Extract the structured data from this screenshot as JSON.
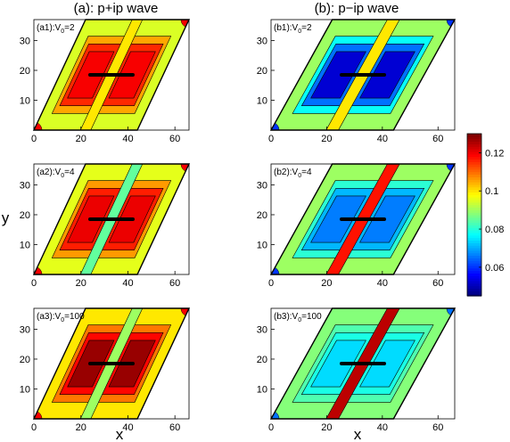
{
  "figure": {
    "col_a_title": "(a): p+ip wave",
    "col_b_title": "(b): p−ip wave",
    "xlabel": "x",
    "ylabel": "y"
  },
  "chart_data": {
    "type": "heatmap",
    "domain": "rhombus (parallelogram) lattice, x from 0 to 66, y from 0 to 37",
    "x_axis": {
      "ticks": [
        0,
        20,
        40,
        60
      ],
      "range": [
        0,
        66
      ]
    },
    "y_axis": {
      "ticks": [
        10,
        20,
        30
      ],
      "range": [
        0,
        37
      ]
    },
    "colorbar": {
      "ticks": [
        "0.12",
        "0.1",
        "0.08",
        "0.06"
      ],
      "tick_values": [
        0.12,
        0.1,
        0.08,
        0.06
      ],
      "range": [
        0.045,
        0.13
      ],
      "colormap": "jet"
    },
    "panels": [
      {
        "id": "a1",
        "label_prefix": "(a1):V",
        "label_sub": "0",
        "label_suffix": "=2",
        "pattern": "p+ip",
        "V0": 2,
        "background": 0.095,
        "lobe": 0.116,
        "core": 0.12,
        "center": 0.1,
        "corner": 0.12
      },
      {
        "id": "a2",
        "label_prefix": "(a2):V",
        "label_sub": "0",
        "label_suffix": "=4",
        "pattern": "p+ip",
        "V0": 4,
        "background": 0.096,
        "lobe": 0.117,
        "core": 0.121,
        "center": 0.085,
        "corner": 0.12
      },
      {
        "id": "a3",
        "label_prefix": "(a3):V",
        "label_sub": "0",
        "label_suffix": "=100",
        "pattern": "p+ip",
        "V0": 100,
        "background": 0.1,
        "lobe": 0.119,
        "core": 0.128,
        "center": 0.09,
        "corner": 0.12
      },
      {
        "id": "b1",
        "label_prefix": "(b1):V",
        "label_sub": "0",
        "label_suffix": "=2",
        "pattern": "p-ip",
        "V0": 2,
        "background": 0.09,
        "lobe": 0.065,
        "core": 0.052,
        "center": 0.1,
        "corner": 0.06
      },
      {
        "id": "b2",
        "label_prefix": "(b2):V",
        "label_sub": "0",
        "label_suffix": "=4",
        "pattern": "p-ip",
        "V0": 4,
        "background": 0.09,
        "lobe": 0.071,
        "core": 0.066,
        "center": 0.118,
        "corner": 0.06
      },
      {
        "id": "b3",
        "label_prefix": "(b3):V",
        "label_sub": "0",
        "label_suffix": "=100",
        "pattern": "p-ip",
        "V0": 100,
        "background": 0.088,
        "lobe": 0.079,
        "core": 0.074,
        "center": 0.125,
        "corner": 0.065
      }
    ]
  }
}
